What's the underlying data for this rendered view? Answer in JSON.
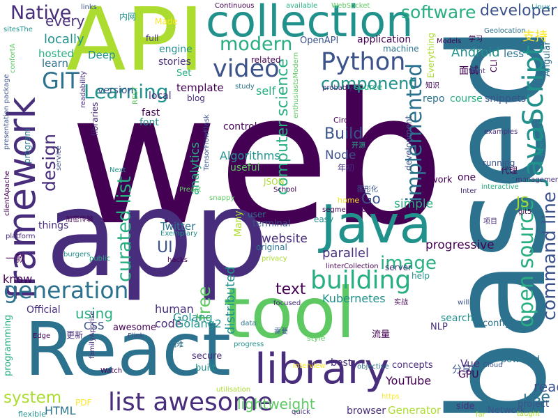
{
  "palette": {
    "c1": "#440154",
    "c2": "#472d7b",
    "c3": "#3b528b",
    "c4": "#2c728e",
    "c5": "#21918c",
    "c6": "#28ae80",
    "c7": "#5ec962",
    "c8": "#addc30",
    "c9": "#fde725"
  },
  "words": [
    "web",
    "app",
    "based",
    "tool",
    "React",
    "API",
    "Java",
    "library",
    "collection",
    "framework",
    "JavaScript",
    "list awesome",
    "generation",
    "building",
    "open source",
    "curated list",
    "Python",
    "video",
    "modern",
    "GIT",
    "Learning",
    "implemented",
    "command line",
    "Native",
    "software",
    "developer",
    "component",
    "image",
    "computer science",
    "design",
    "Build",
    "free",
    "system",
    "using",
    "UI",
    "text",
    "lightweight",
    "YouTube",
    "parallel",
    "progressive",
    "Kubernetes",
    "Golang",
    "distributed",
    "analytics",
    "Go",
    "JS",
    "simple",
    "use",
    "read",
    "every",
    "locally",
    "hosted",
    "learn",
    "Deep",
    "engine",
    "stories",
    "Set",
    "version",
    "template",
    "local",
    "fast",
    "font",
    "blog",
    "control",
    "CircleCI",
    "Node",
    "Algorithms",
    "useful",
    "website",
    "terminal",
    "user",
    "original",
    "Twitter",
    "Many",
    "things",
    "know",
    "Official",
    "CSS",
    "code",
    "awesome",
    "HTML",
    "PDF",
    "programming",
    "flexible",
    "一款",
    "Edge",
    "更新",
    "secure",
    "built",
    "best",
    "concepts",
    "分享",
    "GPU",
    "Vue",
    "search",
    "config",
    "NLP",
    "流量",
    "style",
    "Generator",
    "side",
    "Network",
    "browser",
    "project",
    "powered",
    "Cloud",
    "application",
    "OpenAPI",
    "machine",
    "Models",
    "Everything",
    "Android",
    "less",
    "面试",
    "Angular",
    "CLI",
    "front",
    "examples",
    "development",
    "running",
    "repo",
    "course",
    "snippets",
    "one",
    "work",
    "Inter",
    "代理",
    "management",
    "interactive",
    "Pipelines",
    "JSON",
    "home",
    "segmentation",
    "School",
    "easy",
    "privacy",
    "linterCollection",
    "server",
    "help",
    "focused",
    "will",
    "实战",
    "interview",
    "objective",
    "https",
    "quick",
    "far",
    "taught",
    "Watch",
    "familyApprise",
    "utilisation",
    "progress",
    "data",
    "需要",
    "Flink",
    "困难",
    "hacks",
    "burgers",
    "public",
    "Next",
    "service",
    "Preact",
    "snappy",
    "Exemplary",
    "加密传输",
    "platform",
    "clientApache",
    "presentation package",
    "program",
    "readability",
    "libraries",
    "REST",
    "full",
    "Made",
    "内网",
    "Linux",
    "Geolocation",
    "学习",
    "支持",
    "Continuous",
    "available",
    "WebSocket",
    "links",
    "related",
    "probably",
    "study",
    "self",
    "source",
    "知识",
    "sitesThe",
    "confortA",
    "TensorFlowFlask",
    "enthusiastsModern",
    "开源",
    "年初",
    "图形化",
    "git5",
    "项目",
    "human",
    "Golang2"
  ]
}
